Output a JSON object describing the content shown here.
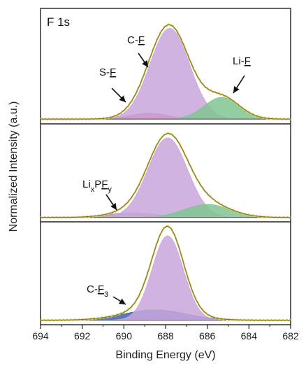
{
  "chart_data": {
    "type": "area",
    "title": "",
    "xlabel": "Binding Energy (eV)",
    "ylabel": "Normalized Intensity (a.u.)",
    "xlim": [
      694,
      682
    ],
    "x_reversed": true,
    "x_ticks": [
      694,
      692,
      690,
      688,
      686,
      684,
      682
    ],
    "grid": false,
    "panels": [
      {
        "label": "F 1s",
        "background": 0.02,
        "peaks": [
          {
            "name": "S-F",
            "center": 688.8,
            "height": 0.06,
            "width": 0.9,
            "color": "#e0506a"
          },
          {
            "name": "C-F",
            "center": 687.8,
            "height": 0.92,
            "width": 0.95,
            "color": "#c9a6dc"
          },
          {
            "name": "Li-F",
            "center": 685.3,
            "height": 0.22,
            "width": 0.85,
            "color": "#7fc690"
          }
        ],
        "annotations": [
          {
            "text": "S-",
            "underlined": "F",
            "target": 689.1
          },
          {
            "text": "C-",
            "underlined": "F",
            "target": 687.4
          },
          {
            "text": "Li-",
            "underlined": "F",
            "target": 685.1
          }
        ]
      },
      {
        "label": "",
        "background": 0.02,
        "peaks": [
          {
            "name": "LixPFy",
            "center": 689.6,
            "height": 0.06,
            "width": 1.1,
            "color": "#b895b0"
          },
          {
            "name": "C-F",
            "center": 687.9,
            "height": 0.98,
            "width": 0.95,
            "color": "#c9a6dc"
          },
          {
            "name": "Li-F",
            "center": 686.0,
            "height": 0.16,
            "width": 1.1,
            "color": "#7fc690"
          }
        ],
        "annotations": [
          {
            "text": "Li",
            "sub1": "x",
            "mid": "P",
            "underlined": "F",
            "sub2": "y",
            "target": 689.6
          }
        ]
      },
      {
        "label": "",
        "background": 0.02,
        "peaks": [
          {
            "name": "C-F3",
            "center": 688.5,
            "height": 0.12,
            "width": 1.5,
            "color": "#3f5fb0"
          },
          {
            "name": "C-F",
            "center": 687.9,
            "height": 0.98,
            "width": 0.75,
            "color": "#c9a6dc"
          }
        ],
        "annotations": [
          {
            "text": "C-",
            "underlined": "F",
            "sub": "3",
            "target": 689.8
          }
        ]
      }
    ]
  }
}
